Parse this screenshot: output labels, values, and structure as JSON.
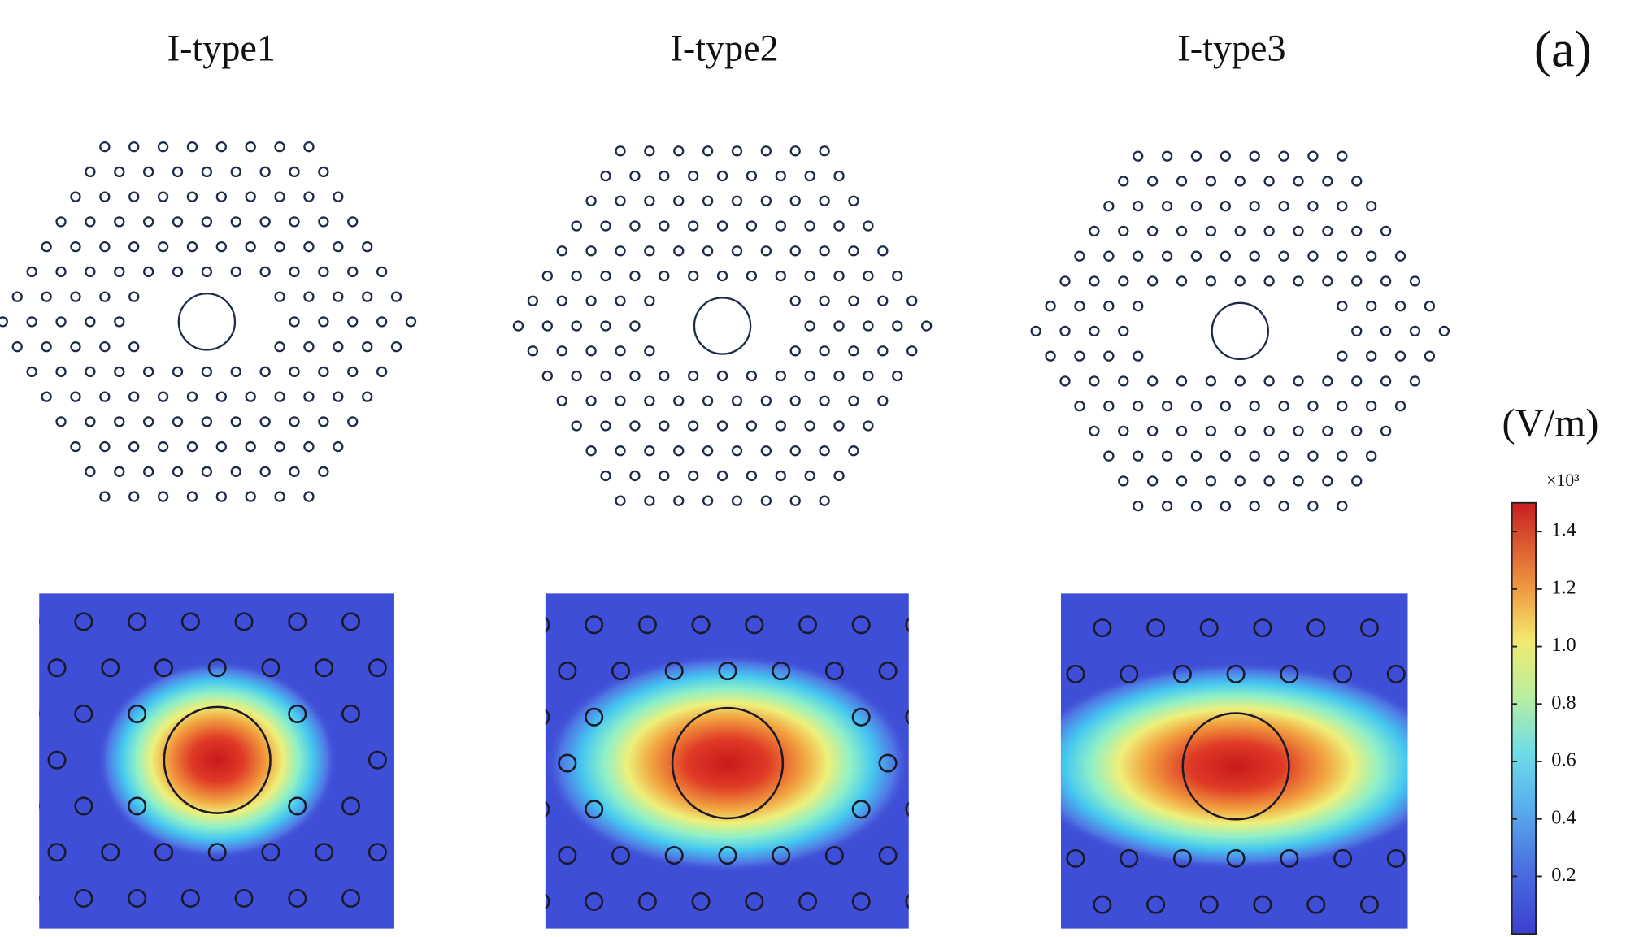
{
  "label": "(a)",
  "panels": [
    {
      "title": "I-type1"
    },
    {
      "title": "I-type2"
    },
    {
      "title": "I-type3"
    }
  ],
  "colorbar": {
    "unit": "(V/m)",
    "multiplier": "×10³",
    "lim": [
      0,
      1.5
    ],
    "ticks": [
      0.2,
      0.4,
      0.6,
      0.8,
      {
        "value": 1,
        "label": "1.0"
      },
      1.2,
      1.4
    ]
  }
}
